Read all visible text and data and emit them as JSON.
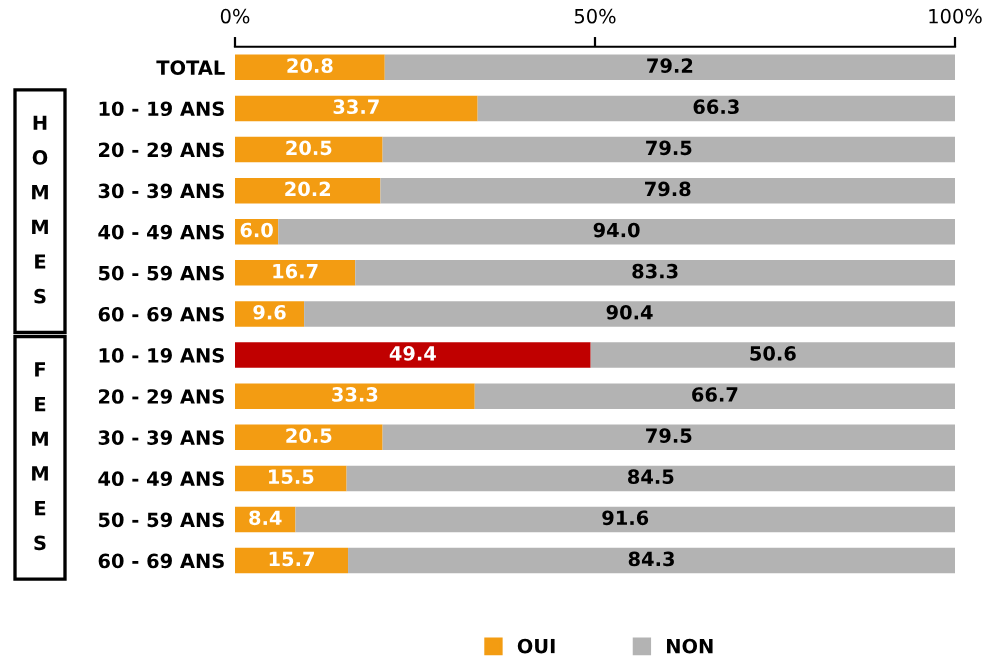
{
  "chart_data": {
    "type": "bar",
    "orientation": "horizontal",
    "stacked": true,
    "categories": [
      "TOTAL",
      "10 - 19 ANS",
      "20 - 29 ANS",
      "30 - 39 ANS",
      "40 - 49 ANS",
      "50 - 59 ANS",
      "60 - 69 ANS",
      "10 - 19 ANS",
      "20 - 29 ANS",
      "30 - 39 ANS",
      "40 - 49 ANS",
      "50 - 59 ANS",
      "60 - 69 ANS"
    ],
    "series": [
      {
        "name": "OUI",
        "color": "#f39c12",
        "colors": [
          "#f39c12",
          "#f39c12",
          "#f39c12",
          "#f39c12",
          "#f39c12",
          "#f39c12",
          "#f39c12",
          "#c00000",
          "#f39c12",
          "#f39c12",
          "#f39c12",
          "#f39c12",
          "#f39c12"
        ],
        "values": [
          20.8,
          33.7,
          20.5,
          20.2,
          6.0,
          16.7,
          9.6,
          49.4,
          33.3,
          20.5,
          15.5,
          8.4,
          15.7
        ],
        "value_labels": [
          "20.8",
          "33.7",
          "20.5",
          "20.2",
          "6.0",
          "16.7",
          "9.6",
          "49.4",
          "33.3",
          "20.5",
          "15.5",
          "8.4",
          "15.7"
        ]
      },
      {
        "name": "NON",
        "color": "#b3b3b3",
        "values": [
          79.2,
          66.3,
          79.5,
          79.8,
          94.0,
          83.3,
          90.4,
          50.6,
          66.7,
          79.5,
          84.5,
          91.6,
          84.3
        ],
        "value_labels": [
          "79.2",
          "66.3",
          "79.5",
          "79.8",
          "94.0",
          "83.3",
          "90.4",
          "50.6",
          "66.7",
          "79.5",
          "84.5",
          "91.6",
          "84.3"
        ]
      }
    ],
    "xlim": [
      0,
      100
    ],
    "xticks": [
      {
        "value": 0,
        "label": "0%"
      },
      {
        "value": 50,
        "label": "50%"
      },
      {
        "value": 100,
        "label": "100%"
      }
    ],
    "legend": "bottom",
    "grid": false,
    "annotations": [
      "HOMMES",
      "FEMMES"
    ]
  }
}
